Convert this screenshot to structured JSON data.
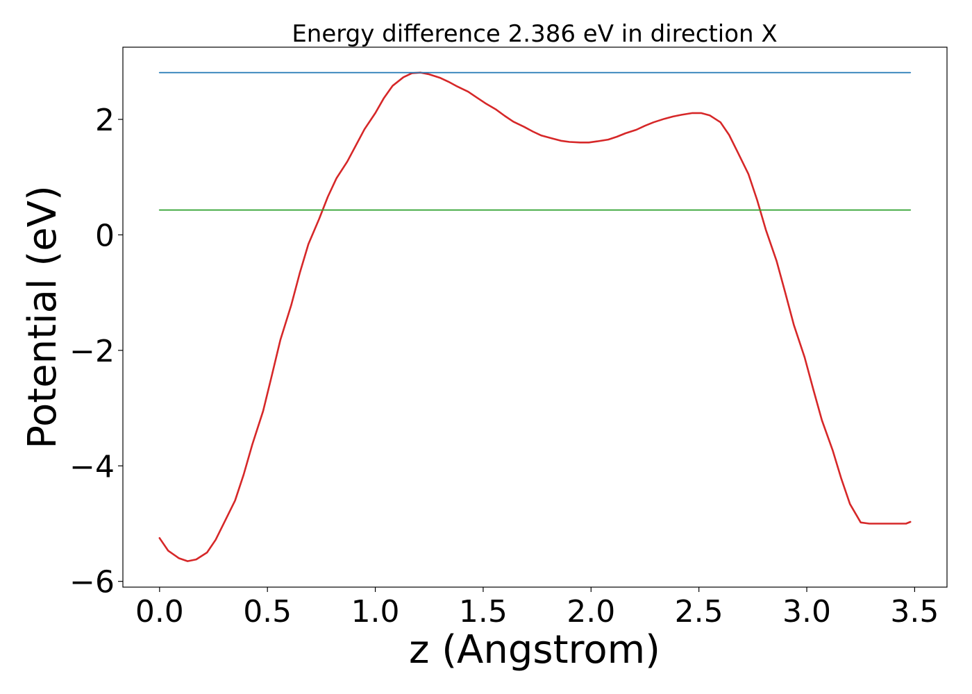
{
  "chart_data": {
    "type": "line",
    "title": "Energy difference 2.386 eV in direction X",
    "xlabel": "z (Angstrom)",
    "ylabel": "Potential (eV)",
    "xlim": [
      -0.17,
      3.65
    ],
    "ylim": [
      -6.1,
      3.25
    ],
    "xticks": [
      0.0,
      0.5,
      1.0,
      1.5,
      2.0,
      2.5,
      3.0,
      3.5
    ],
    "xtick_labels": [
      "0.0",
      "0.5",
      "1.0",
      "1.5",
      "2.0",
      "2.5",
      "3.0",
      "3.5"
    ],
    "yticks": [
      -6,
      -4,
      -2,
      0,
      2
    ],
    "ytick_labels": [
      "−6",
      "−4",
      "−2",
      "0",
      "2"
    ],
    "grid": false,
    "series": [
      {
        "color": "#d62728",
        "x": [
          0.0,
          0.04,
          0.09,
          0.13,
          0.17,
          0.22,
          0.26,
          0.3,
          0.35,
          0.39,
          0.43,
          0.48,
          0.52,
          0.56,
          0.61,
          0.65,
          0.69,
          0.74,
          0.78,
          0.82,
          0.87,
          0.91,
          0.95,
          1.0,
          1.04,
          1.08,
          1.13,
          1.17,
          1.21,
          1.25,
          1.3,
          1.34,
          1.38,
          1.43,
          1.47,
          1.51,
          1.56,
          1.6,
          1.64,
          1.69,
          1.73,
          1.77,
          1.82,
          1.86,
          1.9,
          1.95,
          1.99,
          2.03,
          2.08,
          2.12,
          2.16,
          2.21,
          2.25,
          2.29,
          2.34,
          2.38,
          2.42,
          2.47,
          2.51,
          2.55,
          2.6,
          2.64,
          2.68,
          2.73,
          2.77,
          2.81,
          2.86,
          2.9,
          2.94,
          2.99,
          3.03,
          3.07,
          3.12,
          3.16,
          3.2,
          3.25,
          3.29,
          3.33,
          3.38,
          3.42,
          3.46,
          3.48
        ],
        "y": [
          -5.25,
          -5.47,
          -5.6,
          -5.65,
          -5.62,
          -5.5,
          -5.28,
          -4.98,
          -4.6,
          -4.15,
          -3.63,
          -3.05,
          -2.44,
          -1.82,
          -1.22,
          -0.66,
          -0.16,
          0.28,
          0.66,
          0.98,
          1.27,
          1.55,
          1.83,
          2.11,
          2.37,
          2.58,
          2.73,
          2.8,
          2.81,
          2.78,
          2.72,
          2.65,
          2.57,
          2.48,
          2.38,
          2.28,
          2.17,
          2.06,
          1.96,
          1.87,
          1.79,
          1.72,
          1.67,
          1.63,
          1.61,
          1.6,
          1.6,
          1.62,
          1.65,
          1.7,
          1.76,
          1.82,
          1.89,
          1.95,
          2.01,
          2.05,
          2.08,
          2.11,
          2.11,
          2.07,
          1.95,
          1.73,
          1.43,
          1.05,
          0.6,
          0.09,
          -0.45,
          -1.0,
          -1.56,
          -2.12,
          -2.67,
          -3.21,
          -3.73,
          -4.22,
          -4.66,
          -4.98,
          -5.0,
          -5.0,
          -5.0,
          -5.0,
          -5.0,
          -4.97
        ]
      },
      {
        "color": "#1f77b4",
        "x": [
          0.0,
          3.48
        ],
        "y": [
          2.81,
          2.81
        ]
      },
      {
        "color": "#2ca02c",
        "x": [
          0.0,
          3.48
        ],
        "y": [
          0.43,
          0.43
        ]
      }
    ]
  }
}
